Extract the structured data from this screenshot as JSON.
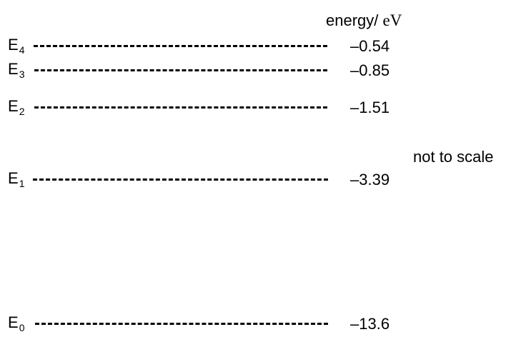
{
  "header": {
    "quantity": "energy/ ",
    "unit": "eV"
  },
  "note": "not to scale",
  "levels": [
    {
      "letter": "E",
      "index": "4",
      "value": "–0.54"
    },
    {
      "letter": "E",
      "index": "3",
      "value": "–0.85"
    },
    {
      "letter": "E",
      "index": "2",
      "value": "–1.51"
    },
    {
      "letter": "E",
      "index": "1",
      "value": "–3.39"
    },
    {
      "letter": "E",
      "index": "0",
      "value": "–13.6"
    }
  ]
}
